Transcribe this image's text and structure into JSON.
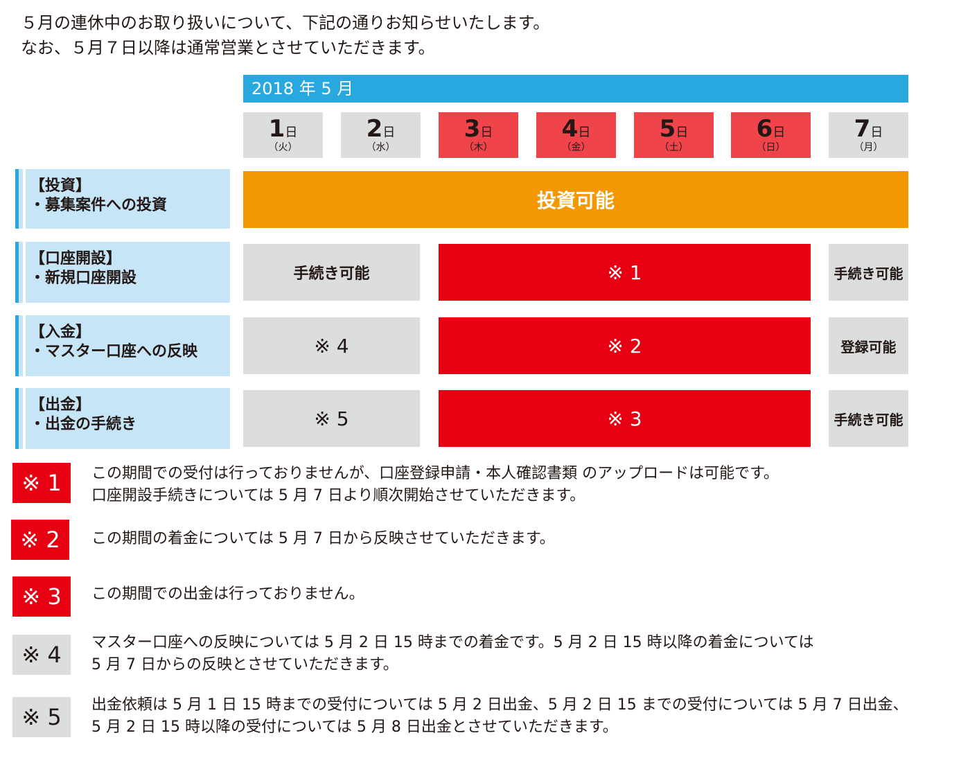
{
  "intro": {
    "line1": "５月の連休中のお取り扱いについて、下記の通りお知らせいたします。",
    "line2": "なお、５月７日以降は通常営業とさせていただきます。"
  },
  "calendar": {
    "month_label": "2018 年 5 月",
    "day_unit": "日",
    "days": [
      {
        "num": "1",
        "weekday": "（火）",
        "holiday": false
      },
      {
        "num": "2",
        "weekday": "（水）",
        "holiday": false
      },
      {
        "num": "3",
        "weekday": "（木）",
        "holiday": true
      },
      {
        "num": "4",
        "weekday": "（金）",
        "holiday": true
      },
      {
        "num": "5",
        "weekday": "（土）",
        "holiday": true
      },
      {
        "num": "6",
        "weekday": "（日）",
        "holiday": true
      },
      {
        "num": "7",
        "weekday": "（月）",
        "holiday": false
      }
    ]
  },
  "rows": [
    {
      "title": "【投資】",
      "subtitle": "・募集案件への投資",
      "cells": {
        "all": "投資可能"
      }
    },
    {
      "title": "【口座開設】",
      "subtitle": "・新規口座開設",
      "cells": {
        "before": "手続き可能",
        "holiday": "※ 1",
        "after": "手続き可能"
      }
    },
    {
      "title": "【入金】",
      "subtitle": "・マスター口座への反映",
      "cells": {
        "before": "※ 4",
        "holiday": "※ 2",
        "after": "登録可能"
      }
    },
    {
      "title": "【出金】",
      "subtitle": "・出金の手続き",
      "cells": {
        "before": "※ 5",
        "holiday": "※ 3",
        "after": "手続き可能"
      }
    }
  ],
  "notes": [
    {
      "mark": "※ 1",
      "line1": "この期間での受付は行っておりませんが、口座登録申請・本人確認書類 のアップロードは可能です。",
      "line2": "口座開設手続きについては 5 月 7 日より順次開始させていただきます。"
    },
    {
      "mark": "※ 2",
      "line1": "この期間の着金については 5 月 7 日から反映させていただきます。"
    },
    {
      "mark": "※ 3",
      "line1": "この期間での出金は行っておりません。"
    },
    {
      "mark": "※ 4",
      "line1": "マスター口座への反映については 5 月 2 日 15 時までの着金です。5 月 2 日 15 時以降の着金については",
      "line2": "5 月 7 日からの反映とさせていただきます。"
    },
    {
      "mark": "※ 5",
      "line1": "出金依頼は 5 月 1 日 15 時までの受付については 5 月 2 日出金、5 月 2 日 15 までの受付については 5 月 7 日出金、",
      "line2": "5 月 2 日 15 時以降の受付については 5 月 8 日出金とさせていただきます。"
    }
  ],
  "colors": {
    "month_bar": "#29a8e0",
    "holiday_day": "#ef454a",
    "red_cell": "#e60012",
    "orange_cell": "#f39800",
    "gray_cell": "#dcdddd",
    "label_bg": "#c6e5f7"
  }
}
